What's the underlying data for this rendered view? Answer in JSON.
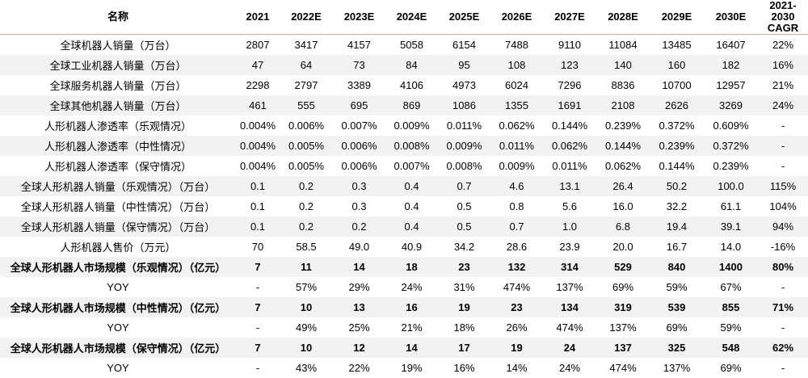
{
  "table": {
    "header": [
      "名称",
      "2021",
      "2022E",
      "2023E",
      "2024E",
      "2025E",
      "2026E",
      "2027E",
      "2028E",
      "2029E",
      "2030E",
      "2021-2030 CAGR"
    ],
    "rows": [
      [
        "全球机器人销量（万台）",
        "2807",
        "3417",
        "4157",
        "5058",
        "6154",
        "7488",
        "9110",
        "11084",
        "13485",
        "16407",
        "22%"
      ],
      [
        "全球工业机器人销量（万台）",
        "47",
        "64",
        "73",
        "84",
        "95",
        "108",
        "123",
        "140",
        "160",
        "182",
        "16%"
      ],
      [
        "全球服务机器人销量（万台）",
        "2298",
        "2797",
        "3389",
        "4106",
        "4973",
        "6024",
        "7296",
        "8836",
        "10700",
        "12957",
        "21%"
      ],
      [
        "全球其他机器人销量（万台）",
        "461",
        "555",
        "695",
        "869",
        "1086",
        "1355",
        "1691",
        "2108",
        "2626",
        "3269",
        "24%"
      ],
      [
        "人形机器人渗透率（乐观情况）",
        "0.004%",
        "0.006%",
        "0.007%",
        "0.009%",
        "0.011%",
        "0.062%",
        "0.144%",
        "0.239%",
        "0.372%",
        "0.609%",
        "-"
      ],
      [
        "人形机器人渗透率（中性情况）",
        "0.004%",
        "0.005%",
        "0.006%",
        "0.008%",
        "0.009%",
        "0.011%",
        "0.062%",
        "0.144%",
        "0.239%",
        "0.372%",
        "-"
      ],
      [
        "人形机器人渗透率（保守情况）",
        "0.004%",
        "0.005%",
        "0.006%",
        "0.007%",
        "0.008%",
        "0.009%",
        "0.011%",
        "0.062%",
        "0.144%",
        "0.239%",
        "-"
      ],
      [
        "全球人形机器人销量（乐观情况）（万台）",
        "0.1",
        "0.2",
        "0.3",
        "0.4",
        "0.7",
        "4.6",
        "13.1",
        "26.4",
        "50.2",
        "100.0",
        "115%"
      ],
      [
        "全球人形机器人销量（中性情况）（万台）",
        "0.1",
        "0.2",
        "0.3",
        "0.4",
        "0.5",
        "0.8",
        "5.6",
        "16.0",
        "32.2",
        "61.1",
        "104%"
      ],
      [
        "全球人形机器人销量（保守情况）（万台）",
        "0.1",
        "0.2",
        "0.2",
        "0.4",
        "0.5",
        "0.7",
        "1.0",
        "6.8",
        "19.4",
        "39.1",
        "94%"
      ],
      [
        "人形机器人售价（万元）",
        "70",
        "58.5",
        "49.0",
        "40.9",
        "34.2",
        "28.6",
        "23.9",
        "20.0",
        "16.7",
        "14.0",
        "-16%"
      ],
      [
        "全球人形机器人市场规模（乐观情况）（亿元）",
        "7",
        "11",
        "14",
        "18",
        "23",
        "132",
        "314",
        "529",
        "840",
        "1400",
        "80%"
      ],
      [
        "YOY",
        "-",
        "57%",
        "29%",
        "24%",
        "31%",
        "474%",
        "137%",
        "69%",
        "59%",
        "67%",
        "-"
      ],
      [
        "全球人形机器人市场规模（中性情况）（亿元）",
        "7",
        "10",
        "13",
        "16",
        "19",
        "23",
        "134",
        "319",
        "539",
        "855",
        "71%"
      ],
      [
        "YOY",
        "-",
        "49%",
        "25%",
        "21%",
        "18%",
        "26%",
        "474%",
        "137%",
        "69%",
        "59%",
        "-"
      ],
      [
        "全球人形机器人市场规模（保守情况）（亿元）",
        "7",
        "10",
        "12",
        "14",
        "17",
        "19",
        "24",
        "137",
        "325",
        "548",
        "62%"
      ],
      [
        "YOY",
        "-",
        "43%",
        "22%",
        "19%",
        "16%",
        "14%",
        "24%",
        "474%",
        "137%",
        "69%",
        "-"
      ]
    ]
  }
}
